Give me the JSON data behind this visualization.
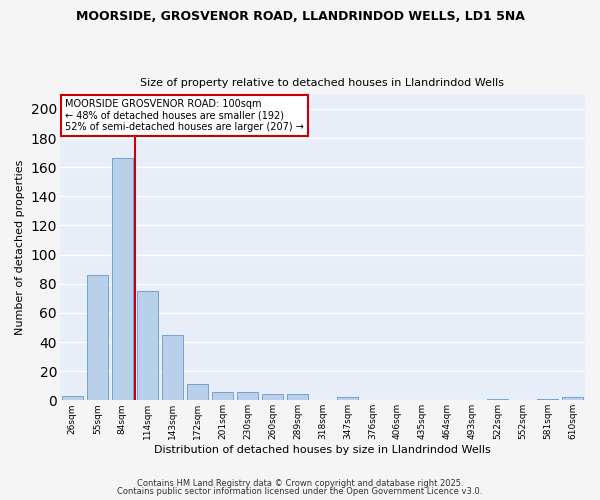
{
  "title": "MOORSIDE, GROSVENOR ROAD, LLANDRINDOD WELLS, LD1 5NA",
  "subtitle": "Size of property relative to detached houses in Llandrindod Wells",
  "xlabel": "Distribution of detached houses by size in Llandrindod Wells",
  "ylabel": "Number of detached properties",
  "categories": [
    "26sqm",
    "55sqm",
    "84sqm",
    "114sqm",
    "143sqm",
    "172sqm",
    "201sqm",
    "230sqm",
    "260sqm",
    "289sqm",
    "318sqm",
    "347sqm",
    "376sqm",
    "406sqm",
    "435sqm",
    "464sqm",
    "493sqm",
    "522sqm",
    "552sqm",
    "581sqm",
    "610sqm"
  ],
  "values": [
    3,
    86,
    166,
    75,
    45,
    11,
    6,
    6,
    4,
    4,
    0,
    2,
    0,
    0,
    0,
    0,
    0,
    1,
    0,
    1,
    2
  ],
  "bar_color": "#b8d0ea",
  "bar_edge_color": "#6699cc",
  "red_line_x": 2.5,
  "annotation_line1": "MOORSIDE GROSVENOR ROAD: 100sqm",
  "annotation_line2": "← 48% of detached houses are smaller (192)",
  "annotation_line3": "52% of semi-detached houses are larger (207) →",
  "annotation_box_color": "#ffffff",
  "annotation_box_edge": "#cc0000",
  "property_line_color": "#cc0000",
  "ylim": [
    0,
    210
  ],
  "yticks": [
    0,
    20,
    40,
    60,
    80,
    100,
    120,
    140,
    160,
    180,
    200
  ],
  "axes_bg_color": "#e8eef8",
  "grid_color": "#ffffff",
  "fig_bg_color": "#f5f5f5",
  "footer1": "Contains HM Land Registry data © Crown copyright and database right 2025.",
  "footer2": "Contains public sector information licensed under the Open Government Licence v3.0."
}
